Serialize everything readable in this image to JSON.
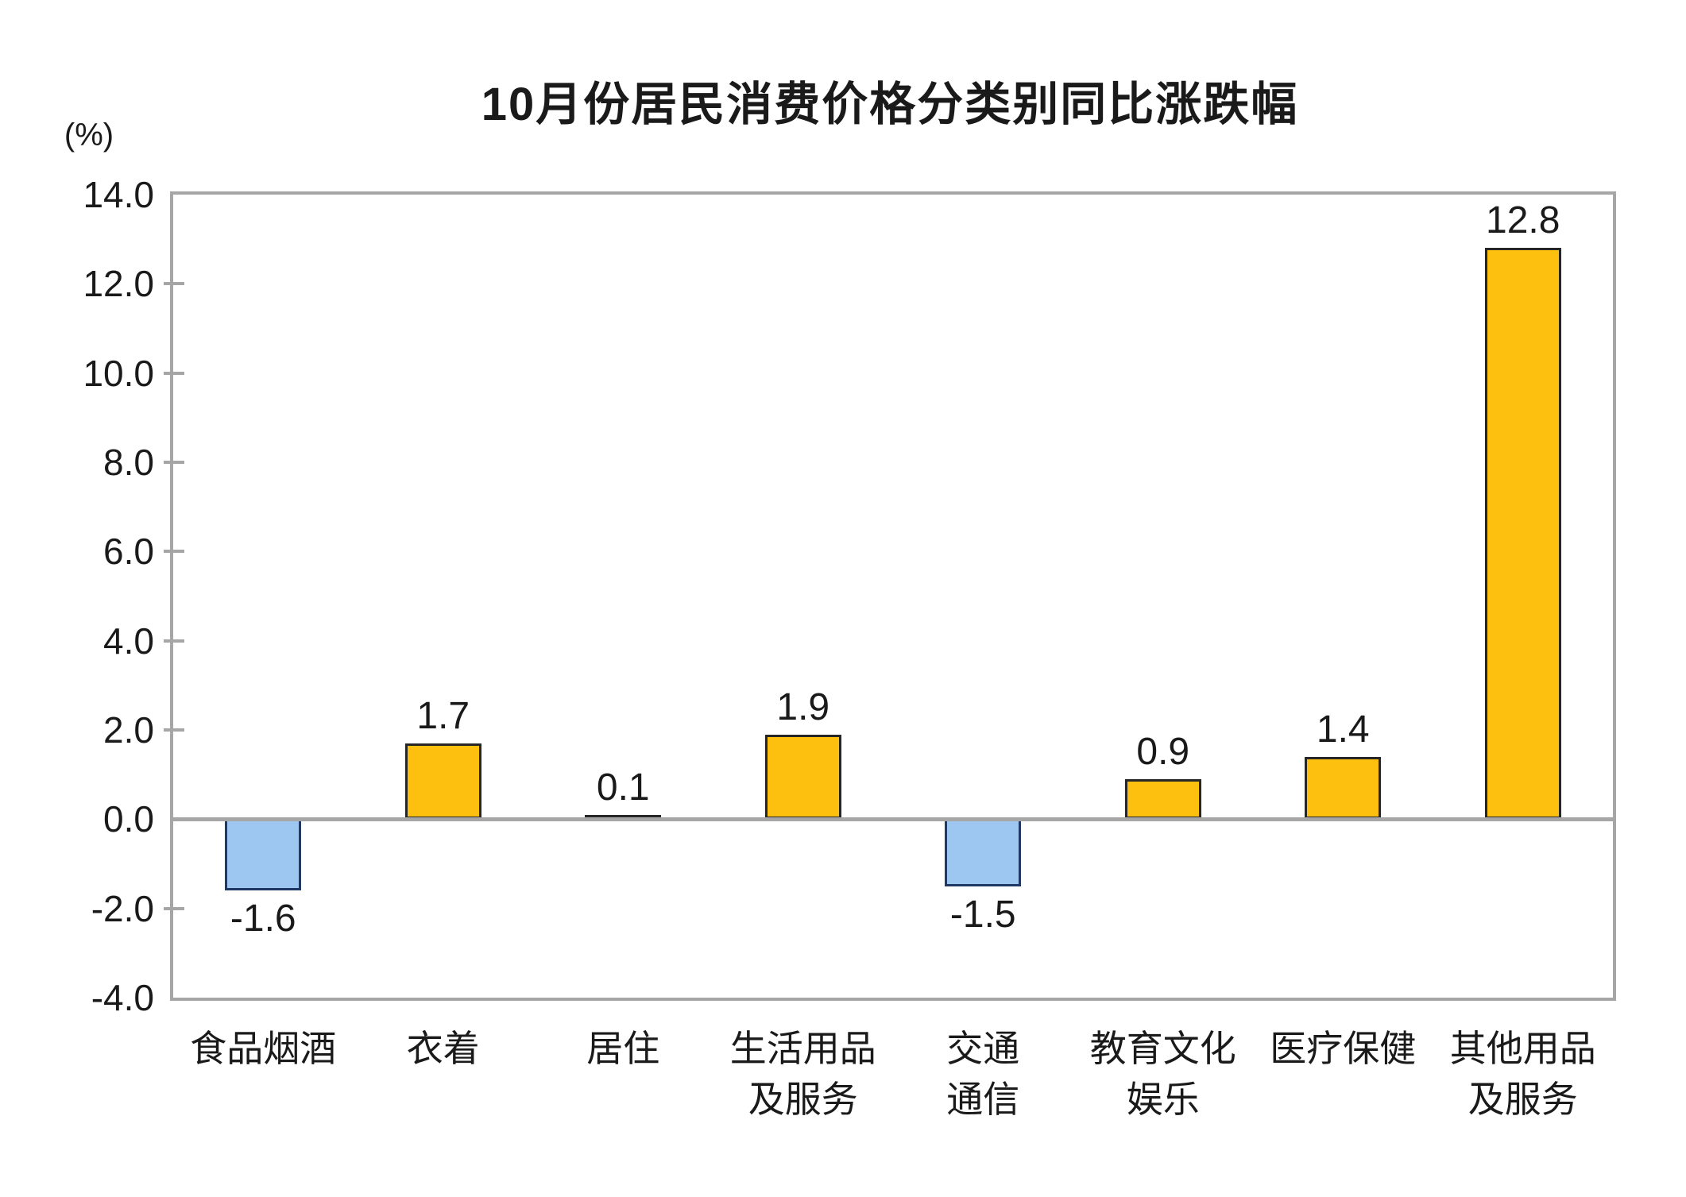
{
  "chart_data": {
    "type": "bar",
    "title": "10月份居民消费价格分类别同比涨跌幅",
    "unit_label": "(%)",
    "categories": [
      "食品烟酒",
      "衣着",
      "居住",
      "生活用品\n及服务",
      "交通\n通信",
      "教育文化\n娱乐",
      "医疗保健",
      "其他用品\n及服务"
    ],
    "values": [
      -1.6,
      1.7,
      0.1,
      1.9,
      -1.5,
      0.9,
      1.4,
      12.8
    ],
    "value_labels": [
      "-1.6",
      "1.7",
      "0.1",
      "1.9",
      "-1.5",
      "0.9",
      "1.4",
      "12.8"
    ],
    "ylim": [
      -4.0,
      14.0
    ],
    "ytick_step": 2.0,
    "yticks": [
      "14.0",
      "12.0",
      "10.0",
      "8.0",
      "6.0",
      "4.0",
      "2.0",
      "0.0",
      "-2.0",
      "-4.0"
    ],
    "ytick_values": [
      14.0,
      12.0,
      10.0,
      8.0,
      6.0,
      4.0,
      2.0,
      0.0,
      -2.0,
      -4.0
    ],
    "grid": false,
    "legend": "none",
    "colors": {
      "positive_fill": "#fec00f",
      "positive_border": "#262626",
      "negative_fill": "#9dc6f0",
      "negative_border": "#1f3864",
      "frame": "#a6a6a6",
      "zero_line": "#a6a6a6",
      "text": "#1a1a1a"
    }
  }
}
